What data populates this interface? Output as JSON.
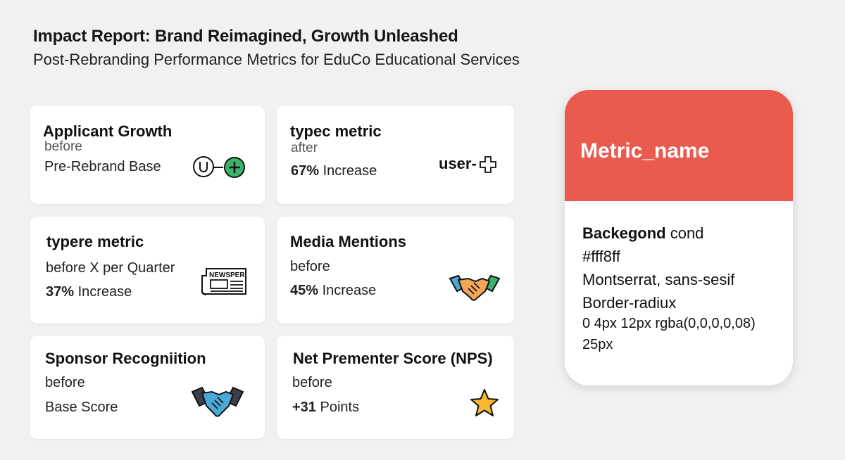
{
  "header": {
    "title": "Impact Report: Brand Reimagined, Growth Unleashed",
    "subtitle": "Post-Rebranding Performance Metrics for EduCo Educational Services"
  },
  "cards": [
    {
      "name": "Applicant Growth",
      "sub": "before",
      "value_bold": "",
      "value": "Pre-Rebrand Base",
      "icon": "user-plus-icon"
    },
    {
      "name": "typec metric",
      "sub": "after",
      "value_bold": "67%",
      "value": " Increase",
      "icon_text": "user-",
      "icon": "plus-icon"
    },
    {
      "name": "typere metric",
      "sub": "before  X per Quarter",
      "value_bold": "37%",
      "value": " Increase",
      "icon": "newspaper-icon",
      "icon_text": "NEWSPER"
    },
    {
      "name": "Media Mentions",
      "sub": "before",
      "value_bold": "45%",
      "value": " Increase",
      "icon": "handshake-icon"
    },
    {
      "name": "Sponsor Recogniition",
      "sub": "before",
      "value_bold": "",
      "value": "Base Score",
      "icon": "handshake-icon"
    },
    {
      "name": "Net Prementer Score (NPS)",
      "sub": "before",
      "value_bold": "+31",
      "value": " Points",
      "icon": "star-icon"
    }
  ],
  "spec_card": {
    "title": "Metric_name",
    "line1_bold": "Backegond",
    "line1": " cond",
    "line2": "#fff8ff",
    "line3": "Montserrat, sans-sesif",
    "line4": "Border-radiux",
    "line5": "0 4px 12px rgba(0,0,0,0,08)",
    "line6": "25px"
  },
  "colors": {
    "accent_red": "#ea5a4e",
    "icon_green": "#3cb36a",
    "star_yellow": "#f7b732",
    "handshake_blue": "#4aa9d6",
    "handshake_orange": "#f2a65a"
  }
}
